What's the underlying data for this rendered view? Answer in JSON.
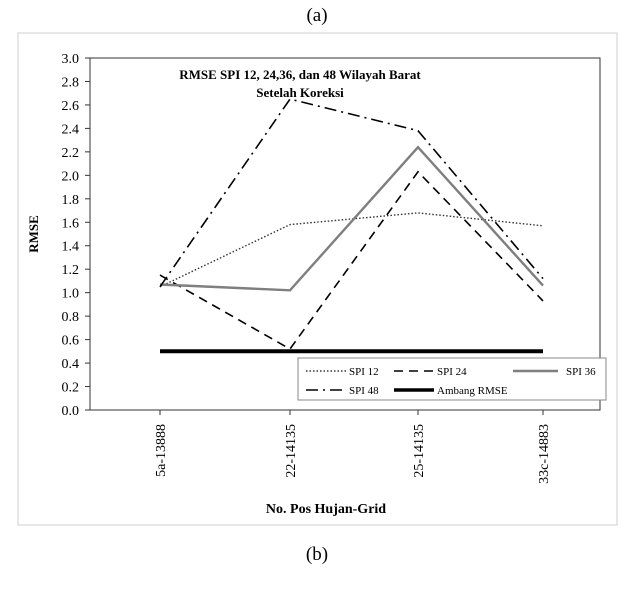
{
  "captions": {
    "top": "(a)",
    "bottom": "(b)"
  },
  "chart_data": {
    "type": "line",
    "title_line1": "RMSE SPI 12, 24,36, dan 48 Wilayah Barat",
    "title_line2": "Setelah Koreksi",
    "xlabel": "No. Pos Hujan-Grid",
    "ylabel": "RMSE",
    "ylim": [
      0,
      3.0
    ],
    "yticks": [
      "0.0",
      "0.2",
      "0.4",
      "0.6",
      "0.8",
      "1.0",
      "1.2",
      "1.4",
      "1.6",
      "1.8",
      "2.0",
      "2.2",
      "2.4",
      "2.6",
      "2.8",
      "3.0"
    ],
    "categories": [
      "5a-13888",
      "22-14135",
      "25-14135",
      "33c-14883"
    ],
    "grid": false,
    "legend_position": "bottom-right",
    "series": [
      {
        "name": "SPI 12",
        "values": [
          1.05,
          1.58,
          1.68,
          1.57
        ],
        "color": "#333333",
        "style": "dotted"
      },
      {
        "name": "SPI 24",
        "values": [
          1.15,
          0.52,
          2.03,
          0.93
        ],
        "color": "#000000",
        "style": "dashed"
      },
      {
        "name": "SPI 36",
        "values": [
          1.07,
          1.02,
          2.24,
          1.06
        ],
        "color": "#7f7f7f",
        "style": "solid"
      },
      {
        "name": "SPI 48",
        "values": [
          1.05,
          2.65,
          2.38,
          1.12
        ],
        "color": "#000000",
        "style": "dashdot"
      },
      {
        "name": "Ambang RMSE",
        "values": [
          0.5,
          0.5,
          0.5,
          0.5
        ],
        "color": "#000000",
        "style": "thick"
      }
    ]
  }
}
